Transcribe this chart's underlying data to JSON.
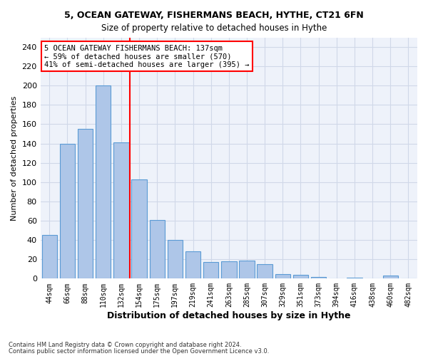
{
  "title1": "5, OCEAN GATEWAY, FISHERMANS BEACH, HYTHE, CT21 6FN",
  "title2": "Size of property relative to detached houses in Hythe",
  "xlabel": "Distribution of detached houses by size in Hythe",
  "ylabel": "Number of detached properties",
  "bin_labels": [
    "44sqm",
    "66sqm",
    "88sqm",
    "110sqm",
    "132sqm",
    "154sqm",
    "175sqm",
    "197sqm",
    "219sqm",
    "241sqm",
    "263sqm",
    "285sqm",
    "307sqm",
    "329sqm",
    "351sqm",
    "373sqm",
    "394sqm",
    "416sqm",
    "438sqm",
    "460sqm",
    "482sqm"
  ],
  "bar_values": [
    45,
    140,
    155,
    200,
    141,
    103,
    61,
    40,
    28,
    17,
    18,
    19,
    15,
    5,
    4,
    2,
    0,
    1,
    0,
    3,
    0
  ],
  "bar_color": "#aec6e8",
  "bar_edge_color": "#5b9bd5",
  "grid_color": "#d0d8e8",
  "background_color": "#eef2fa",
  "vline_x": 4.5,
  "vline_color": "red",
  "annotation_text": "5 OCEAN GATEWAY FISHERMANS BEACH: 137sqm\n← 59% of detached houses are smaller (570)\n41% of semi-detached houses are larger (395) →",
  "annotation_box_color": "white",
  "annotation_box_edge": "red",
  "footer1": "Contains HM Land Registry data © Crown copyright and database right 2024.",
  "footer2": "Contains public sector information licensed under the Open Government Licence v3.0.",
  "ylim": [
    0,
    250
  ],
  "yticks": [
    0,
    20,
    40,
    60,
    80,
    100,
    120,
    140,
    160,
    180,
    200,
    220,
    240
  ]
}
